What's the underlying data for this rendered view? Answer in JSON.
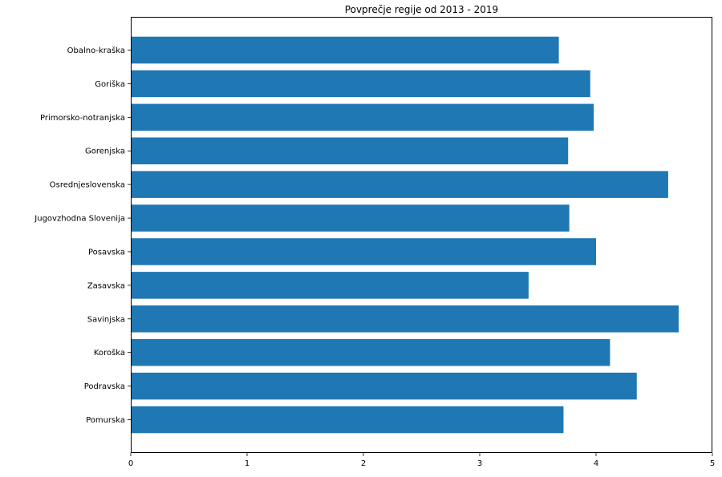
{
  "chart_data": {
    "type": "bar",
    "orientation": "horizontal",
    "title": "Povprečje regije od 2013 - 2019",
    "xlabel": "",
    "ylabel": "",
    "categories": [
      "Obalno-kraška",
      "Goriška",
      "Primorsko-notranjska",
      "Gorenjska",
      "Osrednjeslovenska",
      "Jugovzhodna Slovenija",
      "Posavska",
      "Zasavska",
      "Savinjska",
      "Koroška",
      "Podravska",
      "Pomurska"
    ],
    "values": [
      3.68,
      3.95,
      3.98,
      3.76,
      4.62,
      3.77,
      4.0,
      3.42,
      4.71,
      4.12,
      4.35,
      3.72
    ],
    "xlim": [
      0,
      5
    ],
    "xticks": [
      "0",
      "1",
      "2",
      "3",
      "4",
      "5"
    ],
    "grid": false,
    "bar_color": "#1f77b4"
  }
}
